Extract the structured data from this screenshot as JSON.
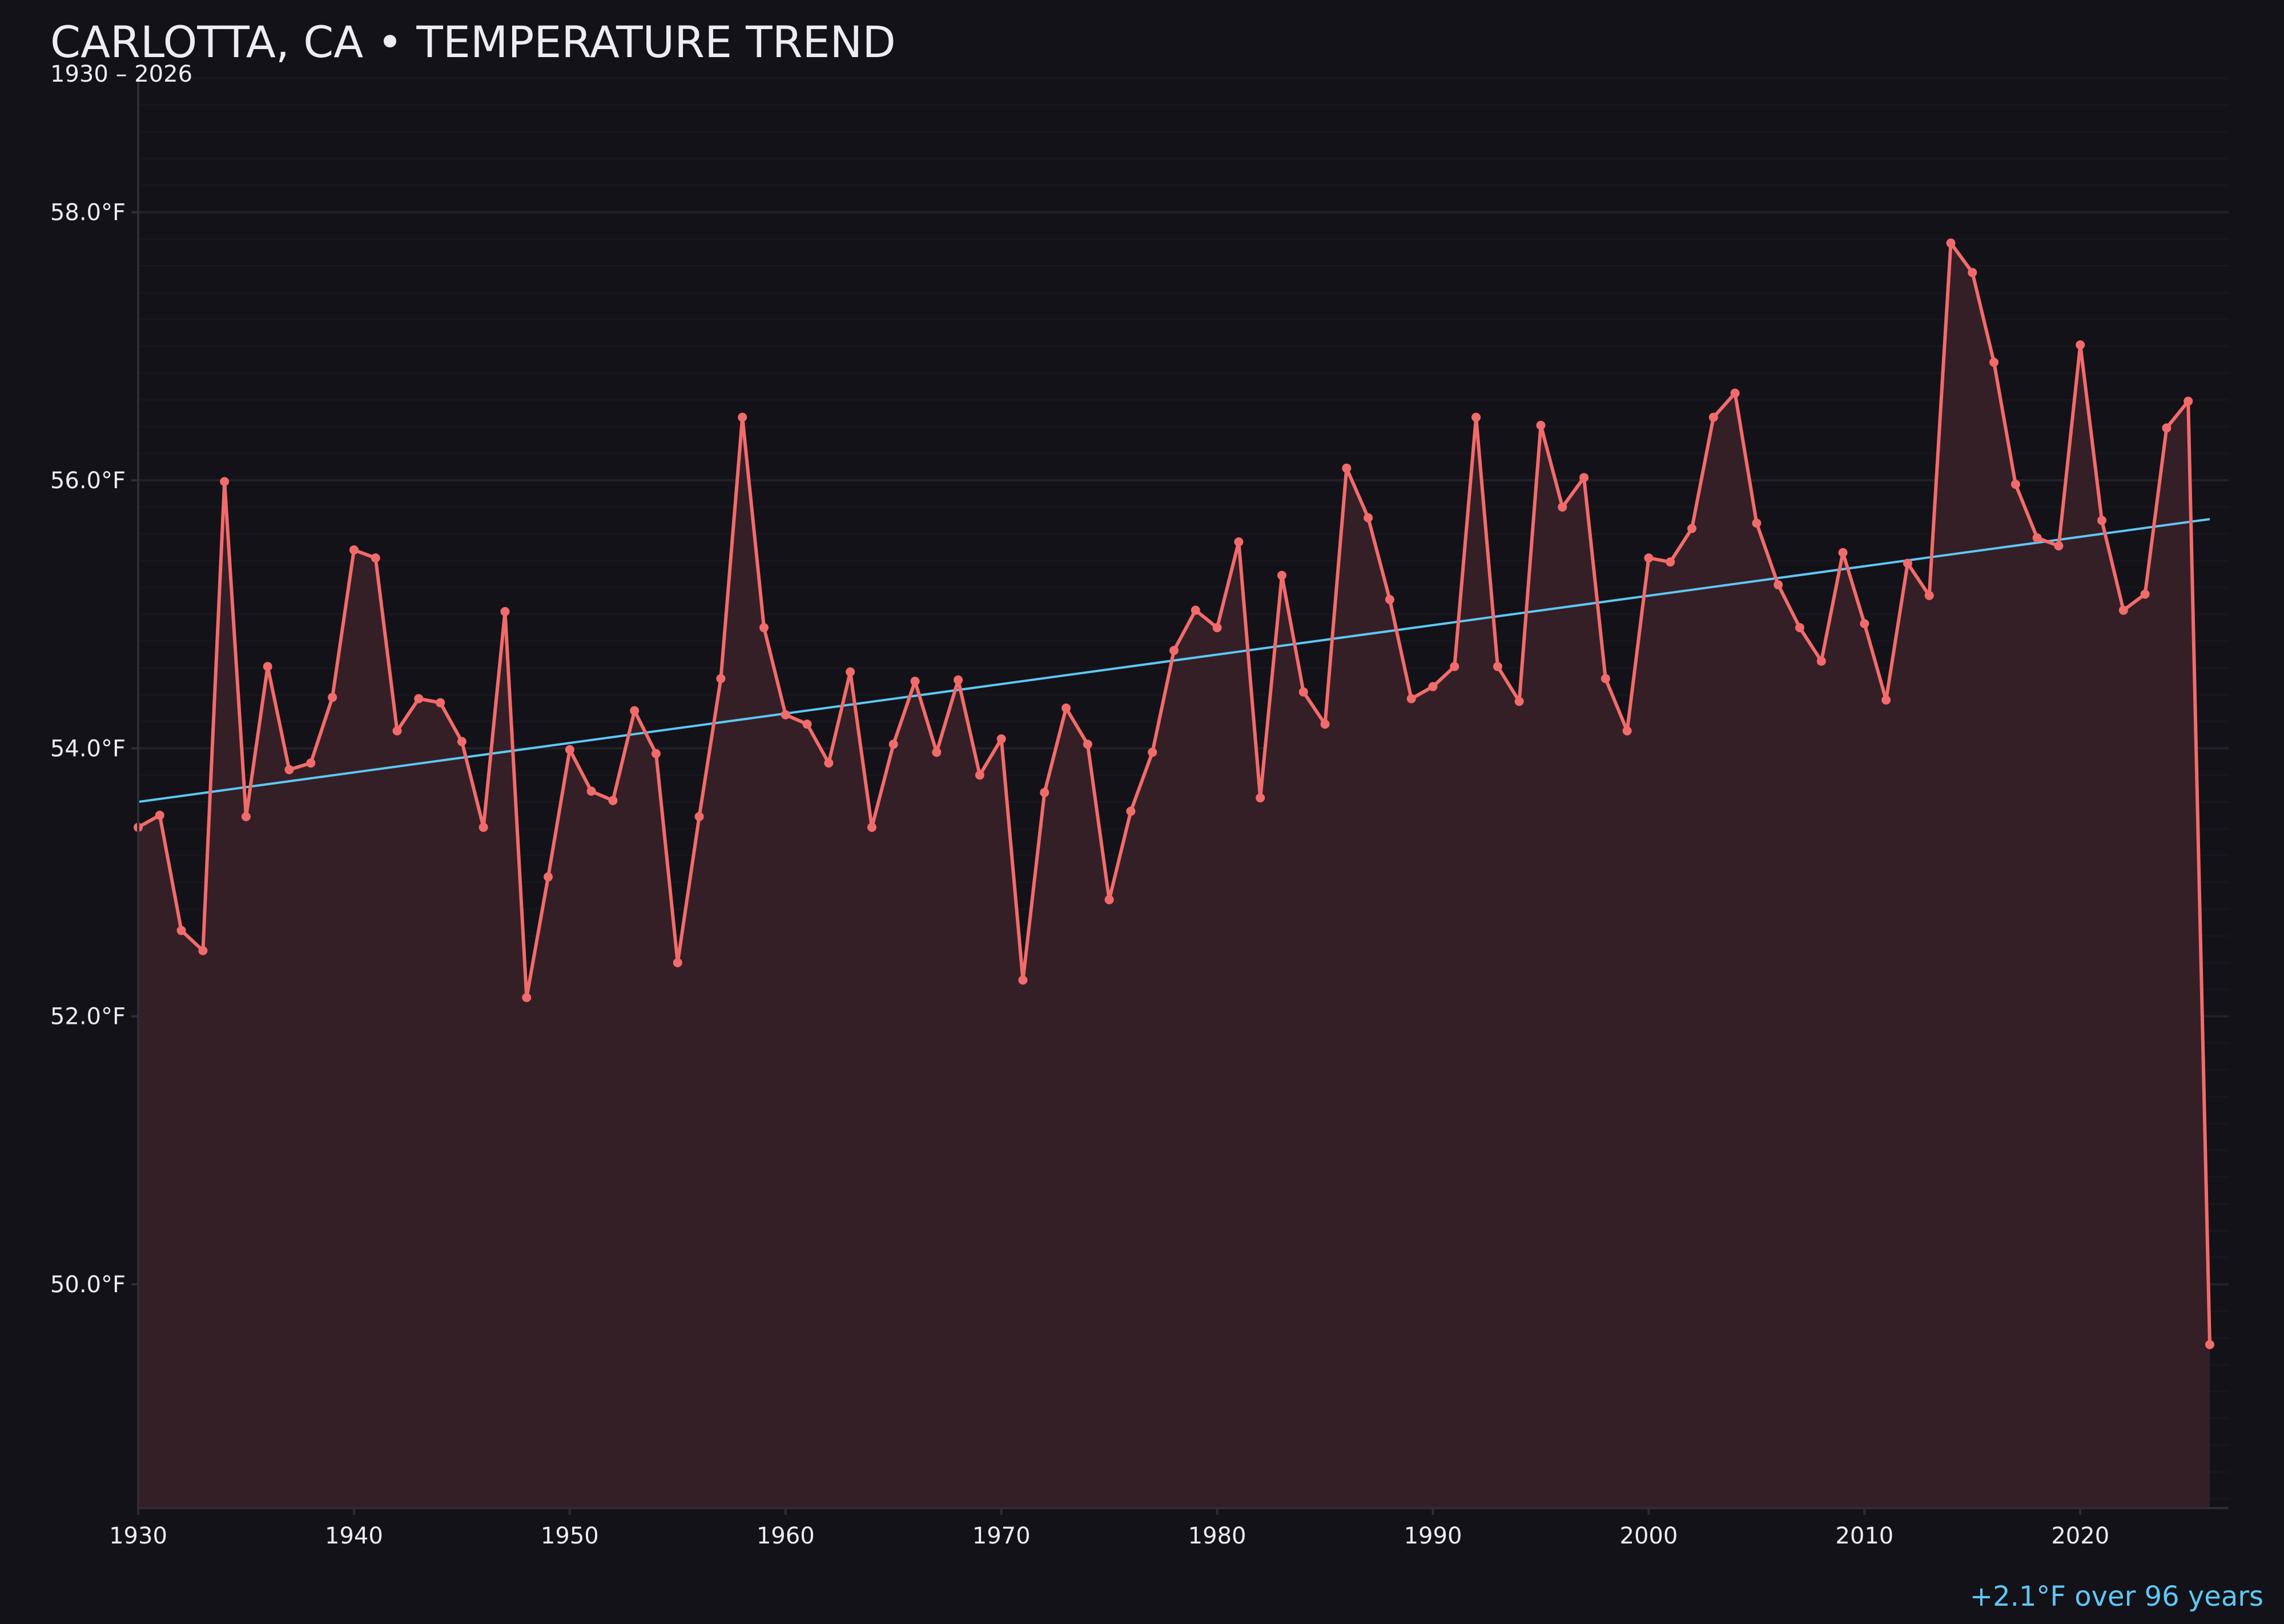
{
  "chart_data": {
    "type": "line",
    "title": "CARLOTTA, CA • TEMPERATURE TREND",
    "subtitle": "1930 – 2026",
    "annotation": "+2.1°F over 96 years",
    "xlabel": "",
    "ylabel": "",
    "xlim": [
      1930,
      2027
    ],
    "ylim": [
      48.33,
      59.0
    ],
    "x_ticks": [
      "1930",
      "1940",
      "1950",
      "1960",
      "1970",
      "1980",
      "1990",
      "2000",
      "2010",
      "2020"
    ],
    "y_ticks": [
      "50.0°F",
      "52.0°F",
      "54.0°F",
      "56.0°F",
      "58.0°F"
    ],
    "grid": true,
    "x": [
      1930,
      1931,
      1932,
      1933,
      1934,
      1935,
      1936,
      1937,
      1938,
      1939,
      1940,
      1941,
      1942,
      1943,
      1944,
      1945,
      1946,
      1947,
      1948,
      1949,
      1950,
      1951,
      1952,
      1953,
      1954,
      1955,
      1956,
      1957,
      1958,
      1959,
      1960,
      1961,
      1962,
      1963,
      1964,
      1965,
      1966,
      1967,
      1968,
      1969,
      1970,
      1971,
      1972,
      1973,
      1974,
      1975,
      1976,
      1977,
      1978,
      1979,
      1980,
      1981,
      1982,
      1983,
      1984,
      1985,
      1986,
      1987,
      1988,
      1989,
      1990,
      1991,
      1992,
      1993,
      1994,
      1995,
      1996,
      1997,
      1998,
      1999,
      2000,
      2001,
      2002,
      2003,
      2004,
      2005,
      2006,
      2007,
      2008,
      2009,
      2010,
      2011,
      2012,
      2013,
      2014,
      2015,
      2016,
      2017,
      2018,
      2019,
      2020,
      2021,
      2022,
      2023,
      2024,
      2025,
      2026
    ],
    "series": [
      {
        "values": [
          53.41,
          53.5,
          52.64,
          52.49,
          55.99,
          53.49,
          54.61,
          53.84,
          53.89,
          54.38,
          55.48,
          55.42,
          54.13,
          54.37,
          54.34,
          54.05,
          53.41,
          55.02,
          52.14,
          53.04,
          53.99,
          53.68,
          53.61,
          54.28,
          53.96,
          52.4,
          53.49,
          54.52,
          56.47,
          54.9,
          54.25,
          54.18,
          53.89,
          54.57,
          53.41,
          54.03,
          54.5,
          53.97,
          54.51,
          53.8,
          54.07,
          52.27,
          53.67,
          54.3,
          54.03,
          52.87,
          53.53,
          53.97,
          54.73,
          55.03,
          54.9,
          55.54,
          53.63,
          55.29,
          54.42,
          54.18,
          56.09,
          55.72,
          55.11,
          54.37,
          54.46,
          54.61,
          56.47,
          54.61,
          54.35,
          56.41,
          55.8,
          56.02,
          54.52,
          54.13,
          55.42,
          55.39,
          55.64,
          56.47,
          56.65,
          55.68,
          55.22,
          54.9,
          54.65,
          55.46,
          54.93,
          54.36,
          55.38,
          55.14,
          57.77,
          57.55,
          56.88,
          55.97,
          55.57,
          55.51,
          57.01,
          55.7,
          55.03,
          55.15,
          56.39,
          56.59,
          49.55
        ]
      }
    ],
    "trend": {
      "start": [
        1930,
        53.6
      ],
      "end": [
        2026,
        55.71
      ]
    },
    "colors": {
      "background": "#131218",
      "line": "#f26b6b",
      "fill": "#351f26",
      "trend": "#5ec8f5",
      "text": "#ececf2",
      "grid": "#1e1d24",
      "axis": "#2e2d35"
    }
  }
}
